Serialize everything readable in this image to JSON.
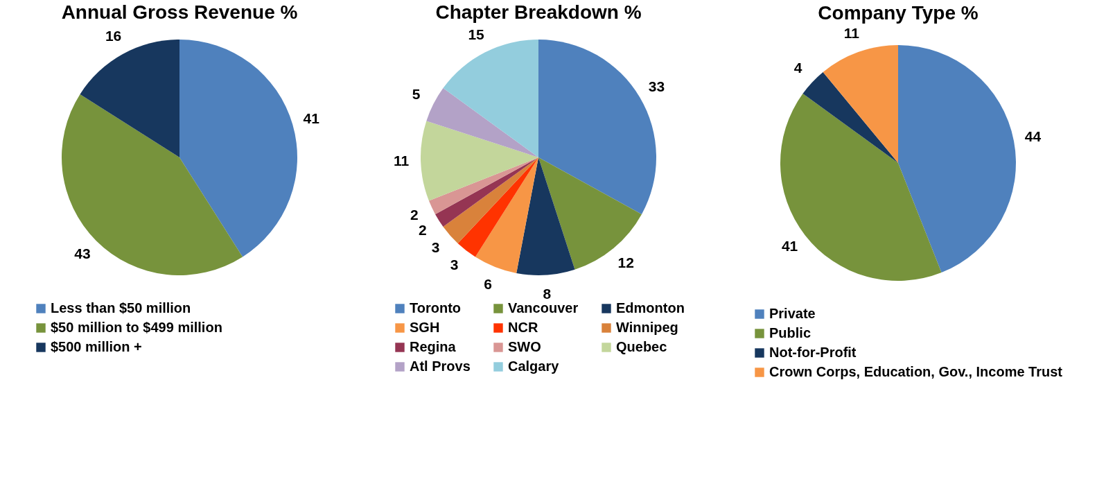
{
  "chart_data": [
    {
      "type": "pie",
      "title": "Annual Gross Revenue %",
      "categories": [
        "Less than $50 million",
        "$50 million to $499 million",
        "$500 million +"
      ],
      "values": [
        41,
        43,
        16
      ],
      "colors": [
        "#4f81bd",
        "#77933c",
        "#17375e"
      ],
      "data_labels": true,
      "legend": "bottom"
    },
    {
      "type": "pie",
      "title": "Chapter Breakdown %",
      "categories": [
        "Toronto",
        "Vancouver",
        "Edmonton",
        "SGH",
        "NCR",
        "Winnipeg",
        "Regina",
        "SWO",
        "Quebec",
        "Atl Provs",
        "Calgary"
      ],
      "values": [
        33,
        12,
        8,
        6,
        3,
        3,
        2,
        2,
        11,
        5,
        15
      ],
      "colors": [
        "#4f81bd",
        "#77933c",
        "#17375e",
        "#f79646",
        "#ff3300",
        "#d9823b",
        "#953553",
        "#d99694",
        "#c3d69b",
        "#b3a2c7",
        "#93cddd"
      ],
      "data_labels": true,
      "legend": "bottom"
    },
    {
      "type": "pie",
      "title": "Company Type %",
      "categories": [
        "Private",
        "Public",
        "Not-for-Profit",
        "Crown Corps, Education, Gov., Income Trust"
      ],
      "values": [
        44,
        41,
        4,
        11
      ],
      "colors": [
        "#4f81bd",
        "#77933c",
        "#17375e",
        "#f79646"
      ],
      "data_labels": true,
      "legend": "bottom"
    }
  ]
}
